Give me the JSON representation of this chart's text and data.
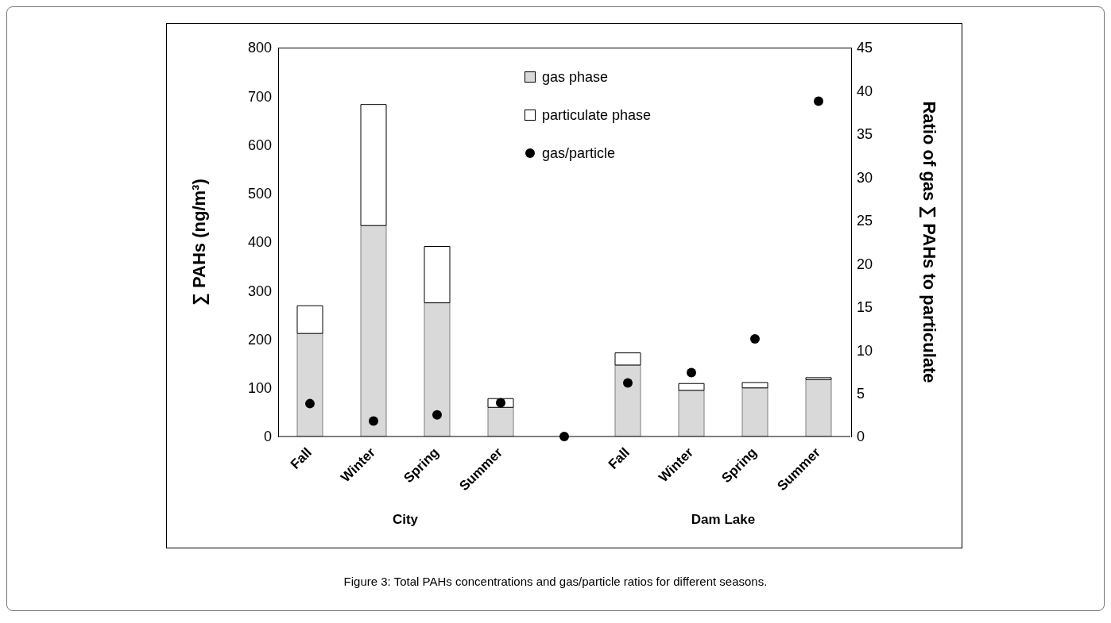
{
  "chart_data": {
    "type": "bar",
    "stacked": true,
    "categories": [
      "Fall",
      "Winter",
      "Spring",
      "Summer",
      null,
      "Fall",
      "Winter",
      "Spring",
      "Summer"
    ],
    "series": [
      {
        "name": "gas phase",
        "color": "#d9d9d9",
        "values": [
          212,
          434,
          275,
          60,
          null,
          147,
          95,
          100,
          117
        ]
      },
      {
        "name": "particulate phase",
        "color": "#ffffff",
        "values": [
          57,
          249,
          116,
          18,
          null,
          25,
          14,
          11,
          4
        ]
      },
      {
        "name": "gas/particle",
        "type": "scatter",
        "axis": "y2",
        "color": "#000000",
        "values": [
          3.8,
          1.8,
          2.5,
          3.9,
          0,
          6.2,
          7.4,
          11.3,
          38.8
        ]
      }
    ],
    "ylabel": "∑ PAHs (ng/m³)",
    "y2label": "Ratio of gas ∑ PAHs to particulate",
    "ylim": [
      0,
      800
    ],
    "yticks": [
      0,
      100,
      200,
      300,
      400,
      500,
      600,
      700,
      800
    ],
    "y2lim": [
      0,
      45
    ],
    "y2ticks": [
      0,
      5,
      10,
      15,
      20,
      25,
      30,
      35,
      40,
      45
    ],
    "grid": false,
    "legend": "top right",
    "marker": "circle",
    "annotations": [
      "City",
      "Dam Lake",
      "Figure 3: Total PAHs concentrations and gas/particle ratios for different seasons."
    ]
  }
}
